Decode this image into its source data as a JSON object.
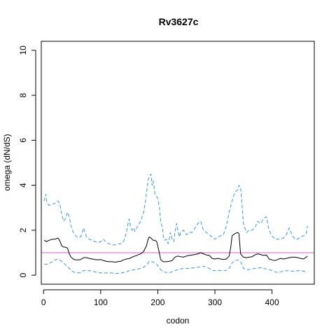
{
  "chart_data": {
    "type": "line",
    "title": "Rv3627c",
    "xlabel": "codon",
    "ylabel": "omega (dN/dS)",
    "xlim": [
      -4,
      474
    ],
    "ylim": [
      -0.4,
      10.4
    ],
    "xticks": [
      0,
      100,
      200,
      300,
      400
    ],
    "yticks": [
      0,
      2,
      4,
      6,
      8,
      10
    ],
    "xtick_labels": [
      "0",
      "100",
      "200",
      "300",
      "400"
    ],
    "ytick_labels": [
      "0",
      "2",
      "4",
      "6",
      "8",
      "10"
    ],
    "reference_line": {
      "y": 1,
      "color": "#cc66cc"
    },
    "series": [
      {
        "role": "upper",
        "color": "#3399dd",
        "dashed": true,
        "x": [
          1,
          4,
          6,
          10,
          20,
          25,
          28,
          32,
          35,
          38,
          42,
          45,
          48,
          52,
          56,
          60,
          65,
          70,
          75,
          80,
          85,
          90,
          95,
          100,
          105,
          110,
          115,
          120,
          125,
          130,
          135,
          140,
          145,
          148,
          150,
          152,
          155,
          158,
          160,
          165,
          170,
          175,
          178,
          180,
          183,
          185,
          188,
          190,
          192,
          195,
          198,
          200,
          203,
          205,
          208,
          210,
          212,
          215,
          218,
          220,
          222,
          225,
          228,
          230,
          233,
          235,
          238,
          240,
          245,
          250,
          255,
          260,
          265,
          270,
          275,
          280,
          285,
          290,
          295,
          300,
          305,
          310,
          315,
          320,
          325,
          330,
          335,
          340,
          342,
          345,
          350,
          355,
          360,
          365,
          370,
          375,
          380,
          385,
          390,
          395,
          400,
          405,
          410,
          415,
          420,
          425,
          430,
          435,
          440,
          445,
          450,
          455,
          460,
          462
        ],
        "y": [
          3.3,
          3.6,
          3.2,
          3.1,
          3.2,
          3.3,
          3.2,
          2.7,
          2.4,
          2.5,
          2.8,
          2.6,
          2.2,
          1.9,
          1.75,
          1.7,
          1.7,
          2.1,
          1.7,
          1.6,
          1.55,
          1.5,
          1.45,
          1.5,
          1.6,
          1.45,
          1.4,
          1.35,
          1.35,
          1.4,
          1.4,
          1.5,
          1.9,
          2.3,
          2.5,
          2.2,
          2.0,
          2.1,
          1.95,
          2.2,
          2.4,
          2.8,
          3.2,
          3.6,
          4.2,
          4.4,
          4.5,
          4.0,
          4.2,
          3.6,
          3.5,
          3.4,
          3.0,
          2.4,
          2.1,
          1.7,
          1.55,
          1.6,
          1.4,
          1.6,
          1.9,
          1.6,
          1.5,
          1.9,
          2.3,
          2.0,
          1.7,
          1.9,
          2.0,
          1.8,
          1.9,
          1.9,
          2.1,
          2.3,
          2.4,
          2.0,
          1.9,
          1.8,
          1.7,
          1.6,
          1.7,
          1.75,
          1.8,
          2.2,
          2.8,
          3.3,
          3.7,
          3.8,
          4.0,
          3.9,
          2.3,
          1.9,
          2.0,
          2.0,
          2.1,
          2.4,
          2.3,
          2.5,
          2.6,
          2.0,
          1.75,
          1.6,
          1.6,
          1.6,
          1.65,
          1.8,
          2.1,
          1.8,
          1.6,
          1.6,
          1.7,
          1.75,
          1.85,
          2.2
        ]
      },
      {
        "role": "estimate",
        "color": "#000000",
        "dashed": false,
        "x": [
          1,
          5,
          10,
          15,
          20,
          25,
          28,
          32,
          35,
          38,
          42,
          45,
          48,
          52,
          56,
          60,
          65,
          70,
          75,
          80,
          85,
          90,
          95,
          100,
          105,
          110,
          115,
          120,
          125,
          130,
          135,
          140,
          145,
          150,
          155,
          160,
          165,
          170,
          175,
          180,
          183,
          185,
          188,
          190,
          192,
          195,
          198,
          200,
          203,
          205,
          208,
          210,
          215,
          220,
          225,
          230,
          235,
          240,
          245,
          250,
          255,
          260,
          265,
          270,
          275,
          280,
          285,
          290,
          295,
          300,
          305,
          310,
          315,
          320,
          325,
          328,
          330,
          335,
          340,
          342,
          345,
          350,
          355,
          360,
          365,
          370,
          375,
          380,
          385,
          390,
          395,
          400,
          405,
          410,
          415,
          420,
          425,
          430,
          435,
          440,
          445,
          450,
          455,
          460,
          462
        ],
        "y": [
          1.55,
          1.5,
          1.55,
          1.6,
          1.6,
          1.65,
          1.55,
          1.3,
          1.25,
          1.25,
          1.2,
          0.95,
          0.8,
          0.72,
          0.68,
          0.68,
          0.7,
          0.78,
          0.78,
          0.75,
          0.72,
          0.7,
          0.68,
          0.7,
          0.65,
          0.62,
          0.6,
          0.6,
          0.58,
          0.6,
          0.62,
          0.68,
          0.72,
          0.74,
          0.8,
          0.85,
          0.9,
          0.95,
          1.05,
          1.3,
          1.6,
          1.7,
          1.65,
          1.6,
          1.55,
          1.55,
          1.5,
          1.3,
          0.95,
          0.7,
          0.62,
          0.6,
          0.6,
          0.62,
          0.65,
          0.8,
          0.85,
          0.82,
          0.8,
          0.85,
          0.88,
          0.9,
          0.92,
          0.95,
          1.0,
          0.95,
          0.9,
          0.88,
          0.75,
          0.72,
          0.75,
          0.72,
          0.7,
          0.72,
          0.85,
          1.3,
          1.75,
          1.85,
          1.9,
          1.85,
          0.95,
          0.8,
          0.78,
          0.8,
          0.82,
          0.9,
          0.95,
          0.92,
          0.88,
          0.9,
          0.72,
          0.68,
          0.65,
          0.7,
          0.75,
          0.72,
          0.75,
          0.78,
          0.8,
          0.8,
          0.78,
          0.75,
          0.72,
          0.8,
          0.85
        ]
      },
      {
        "role": "lower",
        "color": "#3399dd",
        "dashed": true,
        "x": [
          1,
          5,
          10,
          15,
          20,
          25,
          30,
          35,
          40,
          45,
          50,
          55,
          60,
          65,
          70,
          75,
          80,
          85,
          90,
          95,
          100,
          105,
          110,
          115,
          120,
          125,
          130,
          135,
          140,
          145,
          150,
          155,
          160,
          165,
          170,
          175,
          180,
          183,
          185,
          188,
          190,
          192,
          195,
          198,
          200,
          205,
          210,
          215,
          220,
          225,
          230,
          235,
          240,
          245,
          250,
          255,
          260,
          265,
          270,
          275,
          280,
          285,
          290,
          295,
          300,
          305,
          310,
          315,
          320,
          325,
          330,
          335,
          340,
          345,
          350,
          355,
          360,
          365,
          370,
          375,
          380,
          385,
          390,
          395,
          400,
          405,
          410,
          415,
          420,
          425,
          430,
          435,
          440,
          445,
          450,
          455,
          460,
          462
        ],
        "y": [
          0.5,
          0.48,
          0.52,
          0.6,
          0.68,
          0.72,
          0.65,
          0.55,
          0.42,
          0.3,
          0.18,
          0.12,
          0.1,
          0.12,
          0.2,
          0.22,
          0.2,
          0.18,
          0.15,
          0.12,
          0.1,
          0.1,
          0.1,
          0.1,
          0.1,
          0.08,
          0.08,
          0.1,
          0.12,
          0.15,
          0.2,
          0.22,
          0.25,
          0.28,
          0.3,
          0.35,
          0.45,
          0.55,
          0.6,
          0.62,
          0.6,
          0.58,
          0.55,
          0.5,
          0.42,
          0.25,
          0.15,
          0.12,
          0.12,
          0.15,
          0.2,
          0.25,
          0.28,
          0.3,
          0.3,
          0.3,
          0.32,
          0.33,
          0.35,
          0.38,
          0.4,
          0.35,
          0.3,
          0.22,
          0.2,
          0.22,
          0.2,
          0.2,
          0.22,
          0.3,
          0.55,
          0.65,
          0.68,
          0.62,
          0.3,
          0.25,
          0.25,
          0.28,
          0.3,
          0.32,
          0.33,
          0.3,
          0.28,
          0.25,
          0.2,
          0.15,
          0.12,
          0.15,
          0.18,
          0.2,
          0.2,
          0.18,
          0.18,
          0.2,
          0.2,
          0.18,
          0.15,
          0.15
        ]
      }
    ]
  }
}
